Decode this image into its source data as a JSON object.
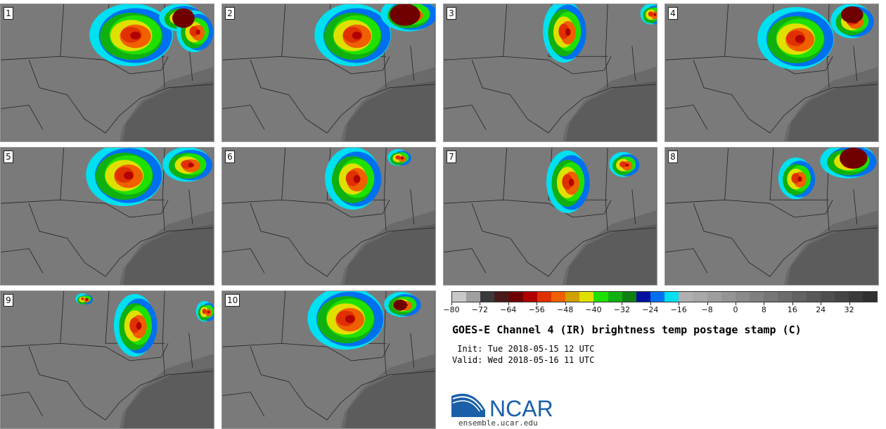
{
  "panels": [
    {
      "label": "1",
      "storms": [
        [
          190,
          45,
          60,
          45
        ],
        [
          260,
          20,
          30,
          20
        ],
        [
          280,
          40,
          25,
          30
        ]
      ],
      "cold": [
        [
          262,
          20,
          16,
          14
        ]
      ]
    },
    {
      "label": "2",
      "storms": [
        [
          190,
          45,
          55,
          45
        ],
        [
          270,
          15,
          40,
          25
        ]
      ],
      "cold": [
        [
          262,
          15,
          22,
          16
        ]
      ]
    },
    {
      "label": "3",
      "storms": [
        [
          175,
          40,
          30,
          45
        ],
        [
          300,
          15,
          15,
          15
        ]
      ],
      "cold": []
    },
    {
      "label": "4",
      "storms": [
        [
          190,
          50,
          55,
          45
        ],
        [
          270,
          25,
          30,
          25
        ]
      ],
      "cold": [
        [
          268,
          15,
          16,
          12
        ]
      ]
    },
    {
      "label": "5",
      "storms": [
        [
          180,
          40,
          55,
          45
        ],
        [
          270,
          25,
          35,
          25
        ]
      ],
      "cold": []
    },
    {
      "label": "6",
      "storms": [
        [
          190,
          45,
          40,
          45
        ],
        [
          255,
          15,
          15,
          12
        ]
      ],
      "cold": []
    },
    {
      "label": "7",
      "storms": [
        [
          180,
          50,
          30,
          45
        ],
        [
          260,
          25,
          20,
          18
        ]
      ],
      "cold": []
    },
    {
      "label": "8",
      "storms": [
        [
          190,
          45,
          25,
          30
        ],
        [
          265,
          20,
          40,
          25
        ]
      ],
      "cold": [
        [
          270,
          15,
          20,
          15
        ]
      ]
    },
    {
      "label": "9",
      "storms": [
        [
          195,
          50,
          30,
          45
        ],
        [
          120,
          12,
          10,
          8
        ],
        [
          295,
          30,
          12,
          15
        ]
      ],
      "cold": []
    },
    {
      "label": "10",
      "storms": [
        [
          180,
          40,
          55,
          45
        ],
        [
          260,
          20,
          25,
          18
        ]
      ],
      "cold": [
        [
          255,
          20,
          10,
          8
        ]
      ]
    }
  ],
  "colorbar": {
    "colors": [
      "#c8c8c8",
      "#a0a0a0",
      "#3a3a3a",
      "#4a1a1a",
      "#700000",
      "#b00000",
      "#e03000",
      "#f06000",
      "#d0a000",
      "#e0e000",
      "#20e000",
      "#10b010",
      "#108010",
      "#0010a0",
      "#0070f0",
      "#00e0f0",
      "#b0b0b0",
      "#a8a8a8",
      "#9e9e9e",
      "#949494",
      "#8a8a8a",
      "#808080",
      "#767676",
      "#6c6c6c",
      "#626262",
      "#585858",
      "#4e4e4e",
      "#444444",
      "#3a3a3a",
      "#303030"
    ],
    "min": -80,
    "max": 40,
    "ticks": [
      "−80",
      "−72",
      "−64",
      "−56",
      "−48",
      "−40",
      "−32",
      "−24",
      "−16",
      "−8",
      "0",
      "8",
      "16",
      "24",
      "32"
    ]
  },
  "title": "GOES-E Channel 4 (IR) brightness temp postage stamp (C)",
  "init_line": " Init: Tue 2018-05-15 12 UTC",
  "valid_line": "Valid: Wed 2018-05-16 11 UTC",
  "logo": {
    "text": "NCAR",
    "url": "ensemble.ucar.edu",
    "brand_color": "#1a5fa8"
  }
}
